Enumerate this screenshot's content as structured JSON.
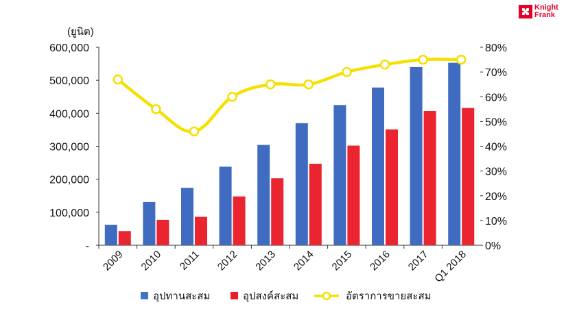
{
  "brand": {
    "line1": "Knight",
    "line2": "Frank",
    "logo_icon": "knight-frank-logo-icon",
    "color": "#e4002b"
  },
  "chart_data": {
    "type": "bar",
    "unit_label": "(ยูนิต)",
    "categories": [
      "2009",
      "2010",
      "2011",
      "2012",
      "2013",
      "2014",
      "2015",
      "2016",
      "2017",
      "Q1 2018"
    ],
    "series": [
      {
        "name": "อุปทานสะสม",
        "type": "bar",
        "axis": "left",
        "color": "#4472c4",
        "values": [
          62000,
          131000,
          174000,
          238000,
          304000,
          370000,
          425000,
          478000,
          540000,
          553000
        ]
      },
      {
        "name": "อุปสงค์สะสม",
        "type": "bar",
        "axis": "left",
        "color": "#ee1c25",
        "values": [
          43000,
          77000,
          86000,
          148000,
          203000,
          247000,
          302000,
          351000,
          407000,
          416000
        ]
      },
      {
        "name": "อัตราการขายสะสม",
        "type": "line",
        "axis": "right",
        "color": "#f5e000",
        "values": [
          67,
          55,
          46,
          60,
          65,
          65,
          70,
          73,
          75,
          75
        ]
      }
    ],
    "left_axis": {
      "ylim": [
        0,
        600000
      ],
      "ticks": [
        "-",
        "100,000",
        "200,000",
        "300,000",
        "400,000",
        "500,000",
        "600,000"
      ]
    },
    "right_axis": {
      "ylim": [
        0,
        80
      ],
      "ticks": [
        "0%",
        "10%",
        "20%",
        "30%",
        "40%",
        "50%",
        "60%",
        "70%",
        "80%"
      ]
    },
    "grid": false,
    "legend_position": "bottom"
  }
}
